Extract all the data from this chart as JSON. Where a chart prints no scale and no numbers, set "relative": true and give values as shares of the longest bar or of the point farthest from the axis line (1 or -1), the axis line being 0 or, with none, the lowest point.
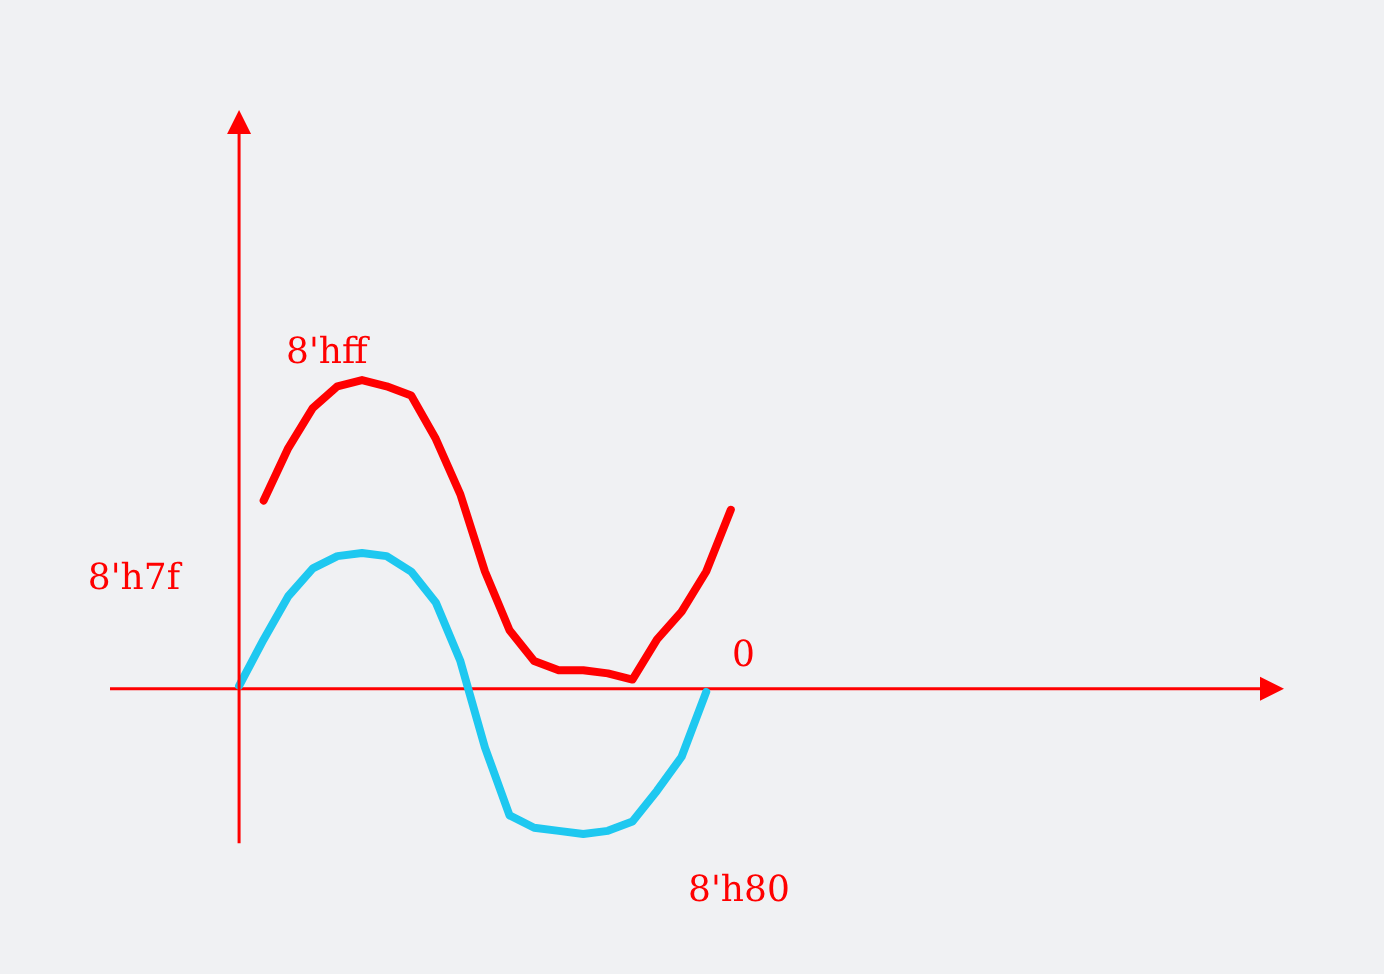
{
  "chart_data": {
    "type": "line",
    "relative": true,
    "legend": false,
    "grid": false,
    "marker": "none",
    "line_style": "solid",
    "categories": [
      null,
      null,
      null,
      null,
      null,
      null,
      null,
      null,
      null,
      null,
      null,
      null,
      null,
      null,
      null,
      null,
      null,
      null,
      null,
      null,
      null
    ],
    "series": [
      {
        "color": "#ff0000",
        "values": [
          null,
          0.61,
          0.78,
          0.91,
          0.98,
          1,
          0.98,
          0.95,
          0.81,
          0.63,
          0.38,
          0.19,
          0.09,
          0.06,
          0.06,
          0.05,
          0.03,
          0.16,
          0.25,
          0.38,
          0.58
        ]
      },
      {
        "color": "#1ec8f0",
        "values": [
          0.01,
          0.16,
          0.3,
          0.39,
          0.43,
          0.44,
          0.43,
          0.38,
          0.28,
          0.09,
          -0.19,
          -0.41,
          -0.45,
          -0.46,
          -0.47,
          -0.46,
          -0.43,
          -0.33,
          -0.22,
          -0.01,
          null
        ]
      }
    ],
    "ref_lines": [
      {
        "axis": "y",
        "value": 0,
        "label": "0",
        "color": "#ff0000"
      }
    ],
    "annotations": [
      "8'hff",
      "8'h7f",
      "8'h80"
    ]
  }
}
